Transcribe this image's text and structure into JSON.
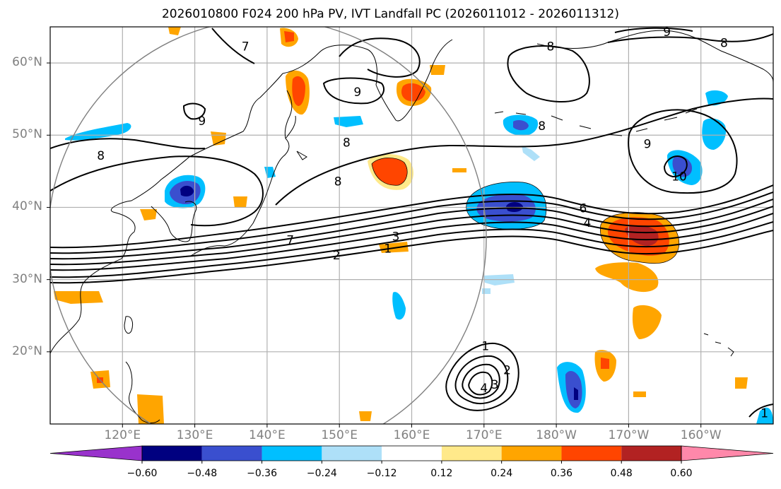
{
  "title": "2026010800 F024 200 hPa PV, IVT Landfall PC (2026011012 - 2026011312)",
  "map_extent": {
    "lon_min": 110,
    "lon_max": 210,
    "lat_min": 10,
    "lat_max": 65
  },
  "lat_labels": [
    {
      "text": "60°N",
      "lat": 60
    },
    {
      "text": "50°N",
      "lat": 50
    },
    {
      "text": "40°N",
      "lat": 40
    },
    {
      "text": "30°N",
      "lat": 30
    },
    {
      "text": "20°N",
      "lat": 20
    }
  ],
  "lon_labels": [
    {
      "text": "120°E",
      "lon": 120
    },
    {
      "text": "130°E",
      "lon": 130
    },
    {
      "text": "140°E",
      "lon": 140
    },
    {
      "text": "150°E",
      "lon": 150
    },
    {
      "text": "160°E",
      "lon": 160
    },
    {
      "text": "170°E",
      "lon": 170
    },
    {
      "text": "180°W",
      "lon": 180
    },
    {
      "text": "170°W",
      "lon": 190
    },
    {
      "text": "160°W",
      "lon": 200
    }
  ],
  "colorbar": {
    "colors": [
      "#000080",
      "#3a4fcf",
      "#00bfff",
      "#aee0f8",
      "#ffffff",
      "#ffe98a",
      "#ffa500",
      "#ff4500",
      "#b22222"
    ],
    "under_color": "#9932cc",
    "over_color": "#ff88aa",
    "tick_labels": [
      "−0.60",
      "−0.48",
      "−0.36",
      "−0.24",
      "−0.12",
      "0.12",
      "0.24",
      "0.36",
      "0.48",
      "0.60"
    ]
  },
  "contour_labels": [
    {
      "text": "7",
      "lon": 137,
      "lat": 62.3
    },
    {
      "text": "9",
      "lon": 131,
      "lat": 52
    },
    {
      "text": "9",
      "lon": 152.5,
      "lat": 56
    },
    {
      "text": "8",
      "lon": 151,
      "lat": 49
    },
    {
      "text": "8",
      "lon": 149.8,
      "lat": 43.6
    },
    {
      "text": "8",
      "lon": 117,
      "lat": 47.2
    },
    {
      "text": "7",
      "lon": 143.2,
      "lat": 35.5
    },
    {
      "text": "3",
      "lon": 157.8,
      "lat": 36
    },
    {
      "text": "2",
      "lon": 149.6,
      "lat": 33.4
    },
    {
      "text": "1",
      "lon": 156.7,
      "lat": 34.3
    },
    {
      "text": "6",
      "lon": 183.7,
      "lat": 39.9
    },
    {
      "text": "4",
      "lon": 184.3,
      "lat": 37.9
    },
    {
      "text": "8",
      "lon": 179.2,
      "lat": 62.3
    },
    {
      "text": "9",
      "lon": 195.3,
      "lat": 64.3
    },
    {
      "text": "8",
      "lon": 203.2,
      "lat": 62.8
    },
    {
      "text": "8",
      "lon": 178,
      "lat": 51.3
    },
    {
      "text": "9",
      "lon": 192.6,
      "lat": 48.8
    },
    {
      "text": "10",
      "lon": 197,
      "lat": 44.3
    },
    {
      "text": "1",
      "lon": 170.2,
      "lat": 20.8
    },
    {
      "text": "2",
      "lon": 173.2,
      "lat": 17.5
    },
    {
      "text": "3",
      "lon": 171.5,
      "lat": 15.5
    },
    {
      "text": "4",
      "lon": 170,
      "lat": 15
    },
    {
      "text": "1",
      "lon": 208.8,
      "lat": 11.5
    }
  ]
}
